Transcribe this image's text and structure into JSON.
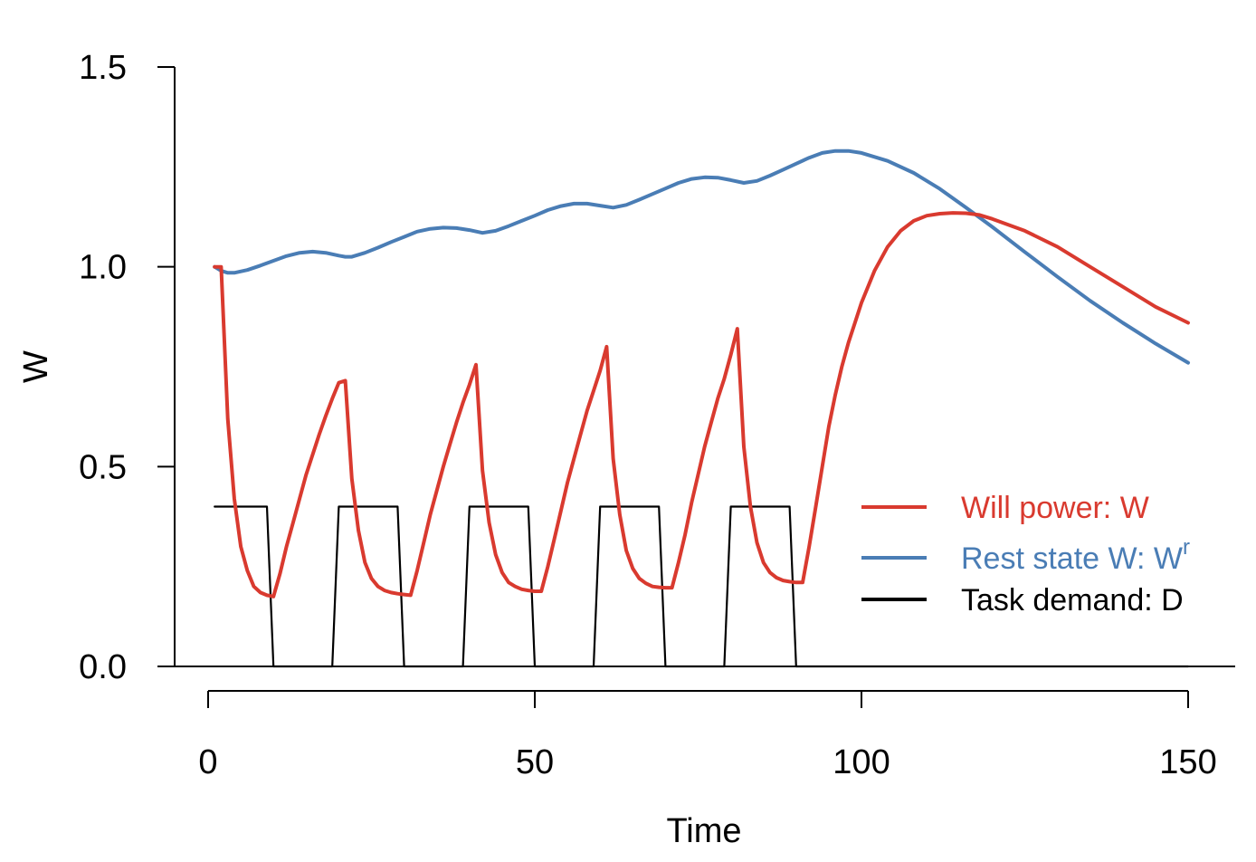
{
  "chart_data": {
    "type": "line",
    "xlabel": "Time",
    "ylabel": "W",
    "xlim": [
      0,
      150
    ],
    "ylim": [
      0,
      1.5
    ],
    "x_ticks": [
      "0",
      "50",
      "100",
      "150"
    ],
    "y_ticks": [
      "0.0",
      "0.5",
      "1.0",
      "1.5"
    ],
    "legend_position": "right",
    "series": [
      {
        "name": "Will power: W",
        "color": "#d93a2f",
        "points": [
          [
            1,
            1.0
          ],
          [
            2,
            1.0
          ],
          [
            3,
            0.62
          ],
          [
            4,
            0.42
          ],
          [
            5,
            0.3
          ],
          [
            6,
            0.24
          ],
          [
            7,
            0.2
          ],
          [
            8,
            0.185
          ],
          [
            9,
            0.178
          ],
          [
            10,
            0.175
          ],
          [
            11,
            0.232
          ],
          [
            12,
            0.3
          ],
          [
            13,
            0.36
          ],
          [
            14,
            0.42
          ],
          [
            15,
            0.48
          ],
          [
            16,
            0.53
          ],
          [
            17,
            0.58
          ],
          [
            18,
            0.627
          ],
          [
            19,
            0.67
          ],
          [
            20,
            0.71
          ],
          [
            21,
            0.715
          ],
          [
            22,
            0.47
          ],
          [
            23,
            0.34
          ],
          [
            24,
            0.26
          ],
          [
            25,
            0.22
          ],
          [
            26,
            0.2
          ],
          [
            27,
            0.19
          ],
          [
            28,
            0.185
          ],
          [
            29,
            0.182
          ],
          [
            30,
            0.18
          ],
          [
            31,
            0.178
          ],
          [
            32,
            0.24
          ],
          [
            33,
            0.31
          ],
          [
            34,
            0.38
          ],
          [
            35,
            0.44
          ],
          [
            36,
            0.5
          ],
          [
            37,
            0.555
          ],
          [
            38,
            0.61
          ],
          [
            39,
            0.66
          ],
          [
            40,
            0.705
          ],
          [
            41,
            0.755
          ],
          [
            42,
            0.49
          ],
          [
            43,
            0.36
          ],
          [
            44,
            0.28
          ],
          [
            45,
            0.235
          ],
          [
            46,
            0.21
          ],
          [
            47,
            0.2
          ],
          [
            48,
            0.193
          ],
          [
            49,
            0.19
          ],
          [
            50,
            0.188
          ],
          [
            51,
            0.188
          ],
          [
            52,
            0.25
          ],
          [
            53,
            0.32
          ],
          [
            54,
            0.39
          ],
          [
            55,
            0.46
          ],
          [
            56,
            0.52
          ],
          [
            57,
            0.58
          ],
          [
            58,
            0.64
          ],
          [
            59,
            0.69
          ],
          [
            60,
            0.74
          ],
          [
            61,
            0.8
          ],
          [
            62,
            0.52
          ],
          [
            63,
            0.38
          ],
          [
            64,
            0.29
          ],
          [
            65,
            0.245
          ],
          [
            66,
            0.22
          ],
          [
            67,
            0.208
          ],
          [
            68,
            0.2
          ],
          [
            69,
            0.198
          ],
          [
            70,
            0.197
          ],
          [
            71,
            0.197
          ],
          [
            72,
            0.26
          ],
          [
            73,
            0.33
          ],
          [
            74,
            0.41
          ],
          [
            75,
            0.48
          ],
          [
            76,
            0.55
          ],
          [
            77,
            0.61
          ],
          [
            78,
            0.67
          ],
          [
            79,
            0.72
          ],
          [
            80,
            0.78
          ],
          [
            81,
            0.845
          ],
          [
            82,
            0.55
          ],
          [
            83,
            0.4
          ],
          [
            84,
            0.31
          ],
          [
            85,
            0.26
          ],
          [
            86,
            0.235
          ],
          [
            87,
            0.222
          ],
          [
            88,
            0.215
          ],
          [
            89,
            0.212
          ],
          [
            90,
            0.21
          ],
          [
            91,
            0.21
          ],
          [
            92,
            0.3
          ],
          [
            93,
            0.4
          ],
          [
            94,
            0.5
          ],
          [
            95,
            0.6
          ],
          [
            96,
            0.68
          ],
          [
            97,
            0.75
          ],
          [
            98,
            0.81
          ],
          [
            99,
            0.86
          ],
          [
            100,
            0.91
          ],
          [
            102,
            0.99
          ],
          [
            104,
            1.05
          ],
          [
            106,
            1.09
          ],
          [
            108,
            1.115
          ],
          [
            110,
            1.128
          ],
          [
            112,
            1.133
          ],
          [
            114,
            1.135
          ],
          [
            116,
            1.134
          ],
          [
            118,
            1.13
          ],
          [
            120,
            1.12
          ],
          [
            125,
            1.09
          ],
          [
            130,
            1.05
          ],
          [
            135,
            1.0
          ],
          [
            140,
            0.95
          ],
          [
            145,
            0.9
          ],
          [
            150,
            0.86
          ]
        ]
      },
      {
        "name": "Rest state W: W",
        "name_sup": "r",
        "color": "#4a7db5",
        "points": [
          [
            1,
            1.0
          ],
          [
            2,
            0.99
          ],
          [
            3,
            0.985
          ],
          [
            4,
            0.985
          ],
          [
            6,
            0.992
          ],
          [
            8,
            1.003
          ],
          [
            10,
            1.015
          ],
          [
            12,
            1.027
          ],
          [
            14,
            1.035
          ],
          [
            16,
            1.038
          ],
          [
            18,
            1.035
          ],
          [
            20,
            1.028
          ],
          [
            21,
            1.025
          ],
          [
            22,
            1.025
          ],
          [
            24,
            1.035
          ],
          [
            26,
            1.048
          ],
          [
            28,
            1.062
          ],
          [
            30,
            1.075
          ],
          [
            32,
            1.088
          ],
          [
            34,
            1.095
          ],
          [
            36,
            1.098
          ],
          [
            38,
            1.097
          ],
          [
            40,
            1.092
          ],
          [
            42,
            1.085
          ],
          [
            44,
            1.09
          ],
          [
            46,
            1.102
          ],
          [
            48,
            1.115
          ],
          [
            50,
            1.128
          ],
          [
            52,
            1.142
          ],
          [
            54,
            1.152
          ],
          [
            56,
            1.158
          ],
          [
            58,
            1.158
          ],
          [
            60,
            1.153
          ],
          [
            62,
            1.148
          ],
          [
            64,
            1.155
          ],
          [
            66,
            1.168
          ],
          [
            68,
            1.182
          ],
          [
            70,
            1.196
          ],
          [
            72,
            1.21
          ],
          [
            74,
            1.22
          ],
          [
            76,
            1.224
          ],
          [
            78,
            1.223
          ],
          [
            80,
            1.217
          ],
          [
            82,
            1.21
          ],
          [
            84,
            1.215
          ],
          [
            86,
            1.228
          ],
          [
            88,
            1.243
          ],
          [
            90,
            1.258
          ],
          [
            92,
            1.273
          ],
          [
            94,
            1.285
          ],
          [
            96,
            1.29
          ],
          [
            98,
            1.29
          ],
          [
            100,
            1.285
          ],
          [
            104,
            1.265
          ],
          [
            108,
            1.235
          ],
          [
            112,
            1.195
          ],
          [
            116,
            1.148
          ],
          [
            120,
            1.1
          ],
          [
            125,
            1.037
          ],
          [
            130,
            0.975
          ],
          [
            135,
            0.915
          ],
          [
            140,
            0.86
          ],
          [
            145,
            0.808
          ],
          [
            150,
            0.76
          ]
        ]
      },
      {
        "name": "Task demand: D",
        "color": "#000000",
        "points": [
          [
            1,
            0.4
          ],
          [
            9,
            0.4
          ],
          [
            10,
            0.0
          ],
          [
            19,
            0.0
          ],
          [
            20,
            0.4
          ],
          [
            29,
            0.4
          ],
          [
            30,
            0.0
          ],
          [
            39,
            0.0
          ],
          [
            40,
            0.4
          ],
          [
            49,
            0.4
          ],
          [
            50,
            0.0
          ],
          [
            59,
            0.0
          ],
          [
            60,
            0.4
          ],
          [
            69,
            0.4
          ],
          [
            70,
            0.0
          ],
          [
            79,
            0.0
          ],
          [
            80,
            0.4
          ],
          [
            89,
            0.4
          ],
          [
            90,
            0.0
          ],
          [
            150,
            0.0
          ]
        ]
      }
    ]
  }
}
